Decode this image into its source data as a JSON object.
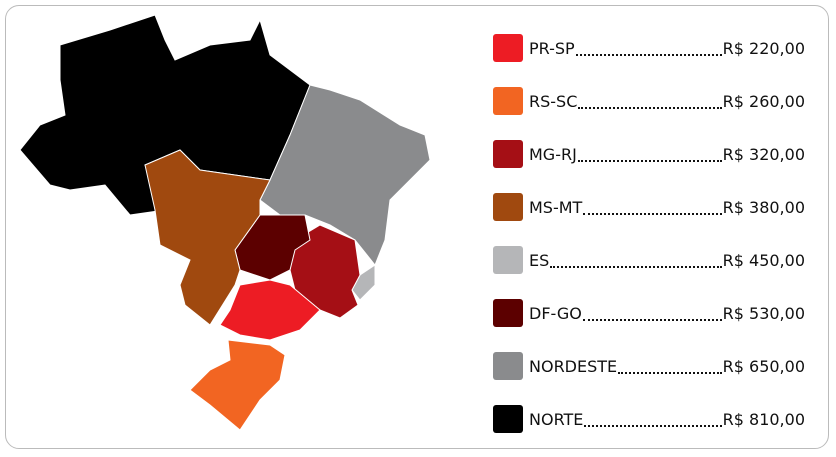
{
  "legend": [
    {
      "region": "PR-SP",
      "price": "R$ 220,00",
      "color": "#ed1c24"
    },
    {
      "region": "RS-SC",
      "price": "R$ 260,00",
      "color": "#f26522"
    },
    {
      "region": "MG-RJ",
      "price": "R$ 320,00",
      "color": "#a50f15"
    },
    {
      "region": "MS-MT",
      "price": "R$ 380,00",
      "color": "#a0490f"
    },
    {
      "region": "ES",
      "price": "R$ 450,00",
      "color": "#b5b6b8"
    },
    {
      "region": "DF-GO",
      "price": "R$ 530,00",
      "color": "#5c0000"
    },
    {
      "region": "NORDESTE",
      "price": "R$ 650,00",
      "color": "#8a8b8d"
    },
    {
      "region": "NORTE",
      "price": "R$ 810,00",
      "color": "#000000"
    }
  ]
}
